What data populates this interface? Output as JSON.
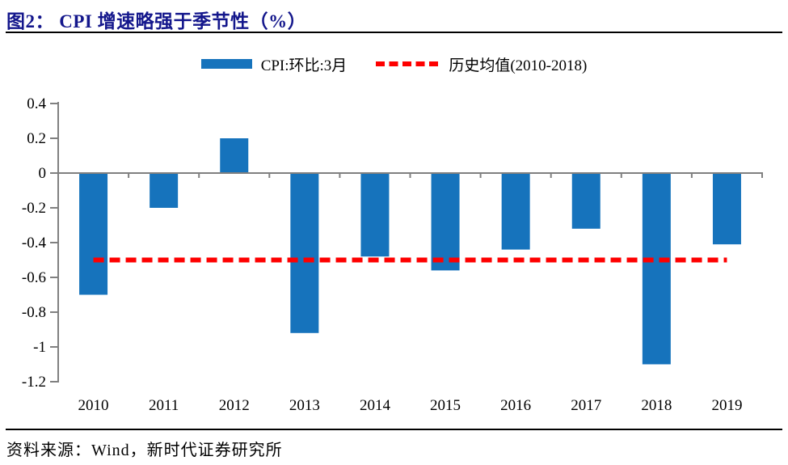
{
  "title": "图2：  CPI 增速略强于季节性（%）",
  "legend": {
    "bar_label": "CPI:环比:3月",
    "line_label": "历史均值(2010-2018)"
  },
  "source": "资料来源：Wind，新时代证券研究所",
  "colors": {
    "bar": "#1673BC",
    "mean_line": "#FE0000",
    "axis": "#808080",
    "title_text": "#14178C",
    "divider": "#000000",
    "tick_text": "#000000"
  },
  "chart_data": {
    "type": "bar",
    "title": "图2：CPI 增速略强于季节性（%）",
    "categories": [
      "2010",
      "2011",
      "2012",
      "2013",
      "2014",
      "2015",
      "2016",
      "2017",
      "2018",
      "2019"
    ],
    "series": [
      {
        "name": "CPI:环比:3月",
        "type": "bar",
        "values": [
          -0.7,
          -0.2,
          0.2,
          -0.92,
          -0.48,
          -0.56,
          -0.44,
          -0.32,
          -1.1,
          -0.41
        ]
      },
      {
        "name": "历史均值(2010-2018)",
        "type": "dashed-line",
        "value": -0.5
      }
    ],
    "ylim": [
      -1.2,
      0.4
    ],
    "yticks": [
      "0.4",
      "0.2",
      "0",
      "-0.2",
      "-0.4",
      "-0.6",
      "-0.8",
      "-1",
      "-1.2"
    ],
    "xlabel": "",
    "ylabel": "",
    "grid": false,
    "legend_position": "top-center"
  }
}
